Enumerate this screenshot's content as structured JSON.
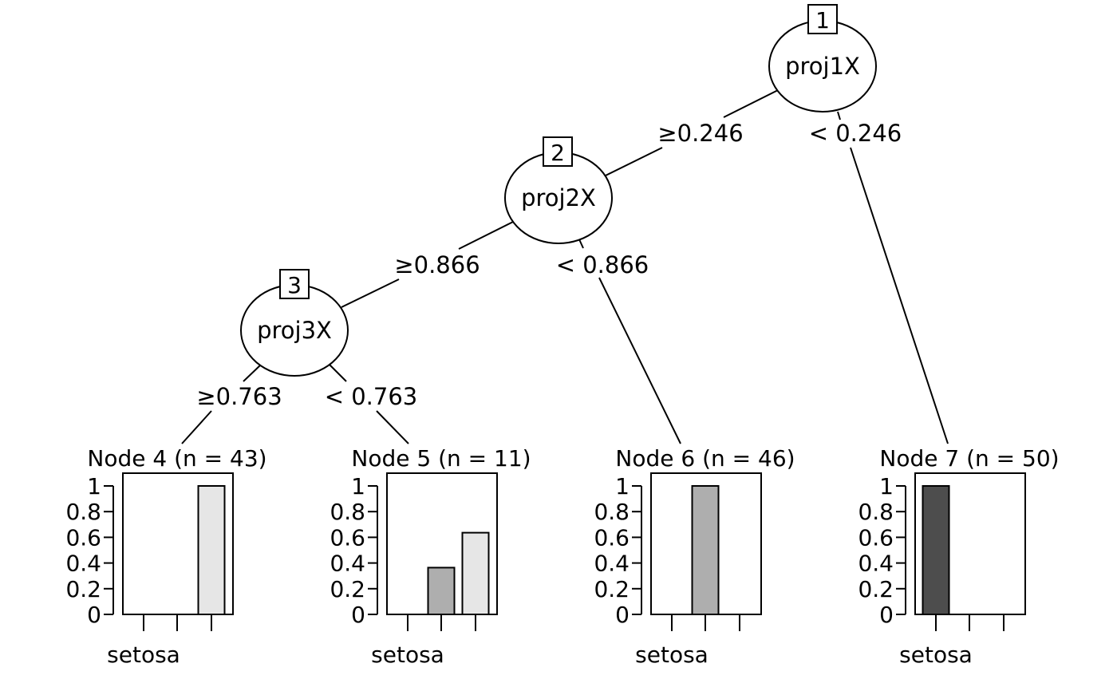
{
  "inner_nodes": [
    {
      "id": "1",
      "var": "proj1X",
      "left_label": "≥0.246",
      "right_label": "< 0.246"
    },
    {
      "id": "2",
      "var": "proj2X",
      "left_label": "≥0.866",
      "right_label": "< 0.866"
    },
    {
      "id": "3",
      "var": "proj3X",
      "left_label": "≥0.763",
      "right_label": "< 0.763"
    }
  ],
  "terminal_nodes": [
    {
      "title": "Node 4 (n = 43)",
      "class_label": "setosa",
      "proportions": [
        0,
        0,
        1
      ]
    },
    {
      "title": "Node 5 (n = 11)",
      "class_label": "setosa",
      "proportions": [
        0,
        0.364,
        0.636
      ]
    },
    {
      "title": "Node 6 (n = 46)",
      "class_label": "setosa",
      "proportions": [
        0,
        1,
        0
      ]
    },
    {
      "title": "Node 7 (n = 50)",
      "class_label": "setosa",
      "proportions": [
        1,
        0,
        0
      ]
    }
  ],
  "y_ticks": [
    "0",
    "0.2",
    "0.4",
    "0.6",
    "0.8",
    "1"
  ],
  "class_colors": [
    "#4d4d4d",
    "#aeaeae",
    "#e6e6e6"
  ]
}
